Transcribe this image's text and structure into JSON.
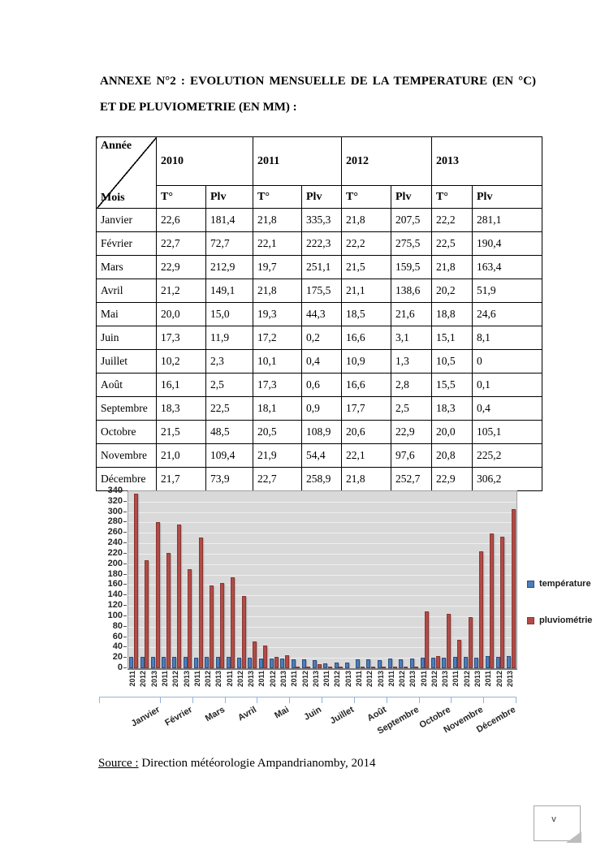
{
  "page": {
    "title_line1": "ANNEXE N°2 : EVOLUTION MENSUELLE DE LA TEMPERATURE (EN °C)",
    "title_line2": "ET DE PLUVIOMETRIE (EN MM) :",
    "source_label": "Source :",
    "source_text": " Direction météorologie Ampandrianomby, 2014",
    "page_marker": "v"
  },
  "table": {
    "corner_top": "Année",
    "corner_bottom": "Mois",
    "years": [
      "2010",
      "2011",
      "2012",
      "2013"
    ],
    "subheaders": [
      "T°",
      "Plv"
    ],
    "rows": [
      {
        "mois": "Janvier",
        "values": [
          "22,6",
          "181,4",
          "21,8",
          "335,3",
          "21,8",
          "207,5",
          "22,2",
          "281,1"
        ]
      },
      {
        "mois": "Février",
        "values": [
          "22,7",
          "72,7",
          "22,1",
          "222,3",
          "22,2",
          "275,5",
          "22,5",
          "190,4"
        ]
      },
      {
        "mois": "Mars",
        "values": [
          "22,9",
          "212,9",
          "19,7",
          "251,1",
          "21,5",
          "159,5",
          "21,8",
          "163,4"
        ]
      },
      {
        "mois": "Avril",
        "values": [
          "21,2",
          "149,1",
          "21,8",
          "175,5",
          "21,1",
          "138,6",
          "20,2",
          "51,9"
        ]
      },
      {
        "mois": "Mai",
        "values": [
          "20,0",
          "15,0",
          "19,3",
          "44,3",
          "18,5",
          "21,6",
          "18,8",
          "24,6"
        ]
      },
      {
        "mois": "Juin",
        "values": [
          "17,3",
          "11,9",
          "17,2",
          "0,2",
          "16,6",
          "3,1",
          "15,1",
          "8,1"
        ]
      },
      {
        "mois": "Juillet",
        "values": [
          "10,2",
          "2,3",
          "10,1",
          "0,4",
          "10,9",
          "1,3",
          "10,5",
          "0"
        ]
      },
      {
        "mois": "Août",
        "values": [
          "16,1",
          "2,5",
          "17,3",
          "0,6",
          "16,6",
          "2,8",
          "15,5",
          "0,1"
        ]
      },
      {
        "mois": "Septembre",
        "values": [
          "18,3",
          "22,5",
          "18,1",
          "0,9",
          "17,7",
          "2,5",
          "18,3",
          "0,4"
        ]
      },
      {
        "mois": "Octobre",
        "values": [
          "21,5",
          "48,5",
          "20,5",
          "108,9",
          "20,6",
          "22,9",
          "20,0",
          "105,1"
        ]
      },
      {
        "mois": "Novembre",
        "values": [
          "21,0",
          "109,4",
          "21,9",
          "54,4",
          "22,1",
          "97,6",
          "20,8",
          "225,2"
        ]
      },
      {
        "mois": "Décembre",
        "values": [
          "21,7",
          "73,9",
          "22,7",
          "258,9",
          "21,8",
          "252,7",
          "22,9",
          "306,2"
        ]
      }
    ]
  },
  "chart_data": {
    "type": "bar",
    "title": "",
    "xlabel": "",
    "ylabel": "",
    "ylim": [
      0,
      340
    ],
    "ytick_step": 20,
    "grid": true,
    "plot_bg": "#d9d9d9",
    "legend_position": "right",
    "categories_months": [
      "Janvier",
      "Février",
      "Mars",
      "Avril",
      "Mai",
      "Juin",
      "Juillet",
      "Août",
      "Septembre",
      "Octobre",
      "Novembre",
      "Décembre"
    ],
    "categories_years": [
      "2011",
      "2012",
      "2013"
    ],
    "series": [
      {
        "name": "température",
        "color": "#4d7cba",
        "border_color": "#2e4d79",
        "values_by_month": [
          [
            21.8,
            21.8,
            22.2
          ],
          [
            22.1,
            22.2,
            22.5
          ],
          [
            19.7,
            21.5,
            21.8
          ],
          [
            21.8,
            21.1,
            20.2
          ],
          [
            19.3,
            18.5,
            18.8
          ],
          [
            17.2,
            16.6,
            15.1
          ],
          [
            10.1,
            10.9,
            10.5
          ],
          [
            17.3,
            16.6,
            15.5
          ],
          [
            18.1,
            17.7,
            18.3
          ],
          [
            20.5,
            20.6,
            20.0
          ],
          [
            21.9,
            22.1,
            20.8
          ],
          [
            22.7,
            21.8,
            22.9
          ]
        ]
      },
      {
        "name": "pluviométrie",
        "color": "#b24b46",
        "border_color": "#8b3532",
        "values_by_month": [
          [
            335.3,
            207.5,
            281.1
          ],
          [
            222.3,
            275.5,
            190.4
          ],
          [
            251.1,
            159.5,
            163.4
          ],
          [
            175.5,
            138.6,
            51.9
          ],
          [
            44.3,
            21.6,
            24.6
          ],
          [
            0.2,
            3.1,
            8.1
          ],
          [
            0.4,
            1.3,
            0
          ],
          [
            0.6,
            2.8,
            0.1
          ],
          [
            0.9,
            2.5,
            0.4
          ],
          [
            108.9,
            22.9,
            105.1
          ],
          [
            54.4,
            97.6,
            225.2
          ],
          [
            258.9,
            252.7,
            306.2
          ]
        ]
      }
    ]
  }
}
